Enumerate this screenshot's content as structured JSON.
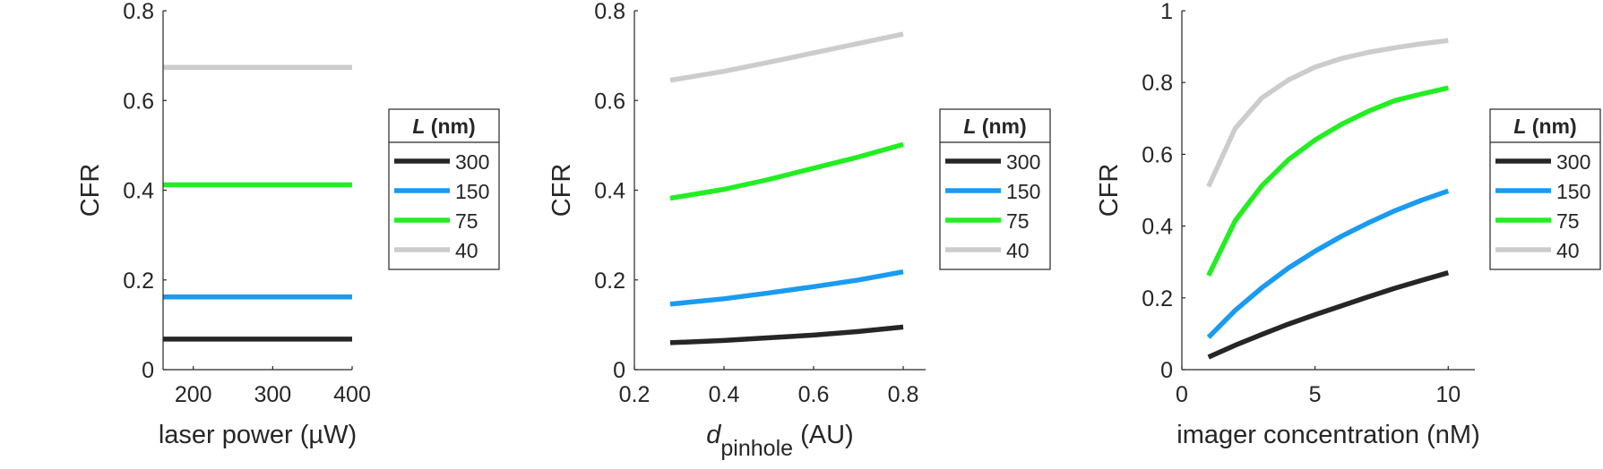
{
  "chart_data": [
    {
      "type": "line",
      "xlabel": "laser power (µW)",
      "ylabel": "CFR",
      "xlim": [
        162,
        400
      ],
      "ylim": [
        0,
        0.8
      ],
      "xticks": [
        200,
        300,
        400
      ],
      "yticks": [
        0,
        0.2,
        0.4,
        0.6,
        0.8
      ],
      "legend": {
        "title_italic": "L",
        "title_rest": " (nm)",
        "placement": "right-outside"
      },
      "series": [
        {
          "name": "300",
          "color": "#262626",
          "x": [
            162,
            400
          ],
          "y": [
            0.068,
            0.068
          ]
        },
        {
          "name": "150",
          "color": "#1a9bf0",
          "x": [
            162,
            400
          ],
          "y": [
            0.162,
            0.162
          ]
        },
        {
          "name": "75",
          "color": "#22ee22",
          "x": [
            162,
            400
          ],
          "y": [
            0.412,
            0.412
          ]
        },
        {
          "name": "40",
          "color": "#cccccc",
          "x": [
            162,
            400
          ],
          "y": [
            0.674,
            0.674
          ]
        }
      ]
    },
    {
      "type": "line",
      "xlabel_main": "d",
      "xlabel_sub": "pinhole",
      "xlabel_rest": " (AU)",
      "ylabel": "CFR",
      "xlim": [
        0.2,
        0.85
      ],
      "ylim": [
        0,
        0.8
      ],
      "xticks": [
        0.2,
        0.4,
        0.6,
        0.8
      ],
      "yticks": [
        0,
        0.2,
        0.4,
        0.6,
        0.8
      ],
      "legend": {
        "title_italic": "L",
        "title_rest": " (nm)",
        "placement": "right-outside"
      },
      "series": [
        {
          "name": "300",
          "color": "#262626",
          "x": [
            0.28,
            0.4,
            0.5,
            0.6,
            0.7,
            0.8
          ],
          "y": [
            0.06,
            0.065,
            0.071,
            0.077,
            0.085,
            0.095
          ]
        },
        {
          "name": "150",
          "color": "#1a9bf0",
          "x": [
            0.28,
            0.4,
            0.5,
            0.6,
            0.7,
            0.8
          ],
          "y": [
            0.146,
            0.158,
            0.171,
            0.185,
            0.2,
            0.218
          ]
        },
        {
          "name": "75",
          "color": "#22ee22",
          "x": [
            0.28,
            0.4,
            0.5,
            0.6,
            0.7,
            0.8
          ],
          "y": [
            0.382,
            0.402,
            0.424,
            0.449,
            0.474,
            0.502
          ]
        },
        {
          "name": "40",
          "color": "#cccccc",
          "x": [
            0.28,
            0.4,
            0.5,
            0.6,
            0.7,
            0.8
          ],
          "y": [
            0.645,
            0.665,
            0.685,
            0.706,
            0.727,
            0.748
          ]
        }
      ]
    },
    {
      "type": "line",
      "xlabel": "imager concentration (nM)",
      "ylabel": "CFR",
      "xlim": [
        0,
        11
      ],
      "ylim": [
        0,
        1
      ],
      "xticks": [
        0,
        5,
        10
      ],
      "yticks": [
        0,
        0.2,
        0.4,
        0.6,
        0.8,
        1
      ],
      "legend": {
        "title_italic": "L",
        "title_rest": " (nm)",
        "placement": "right-outside"
      },
      "series": [
        {
          "name": "300",
          "color": "#262626",
          "x": [
            1,
            2,
            3,
            4,
            5,
            6,
            7,
            8,
            9,
            10
          ],
          "y": [
            0.035,
            0.068,
            0.098,
            0.127,
            0.153,
            0.178,
            0.203,
            0.227,
            0.249,
            0.27
          ]
        },
        {
          "name": "150",
          "color": "#1a9bf0",
          "x": [
            1,
            2,
            3,
            4,
            5,
            6,
            7,
            8,
            9,
            10
          ],
          "y": [
            0.09,
            0.165,
            0.228,
            0.283,
            0.33,
            0.372,
            0.409,
            0.443,
            0.472,
            0.498
          ]
        },
        {
          "name": "75",
          "color": "#22ee22",
          "x": [
            1,
            2,
            3,
            4,
            5,
            6,
            7,
            8,
            9,
            10
          ],
          "y": [
            0.262,
            0.415,
            0.512,
            0.585,
            0.64,
            0.684,
            0.72,
            0.75,
            0.768,
            0.785
          ]
        },
        {
          "name": "40",
          "color": "#cccccc",
          "x": [
            1,
            2,
            3,
            4,
            5,
            6,
            7,
            8,
            9,
            10
          ],
          "y": [
            0.51,
            0.672,
            0.757,
            0.807,
            0.843,
            0.867,
            0.884,
            0.897,
            0.908,
            0.917
          ]
        }
      ]
    }
  ]
}
